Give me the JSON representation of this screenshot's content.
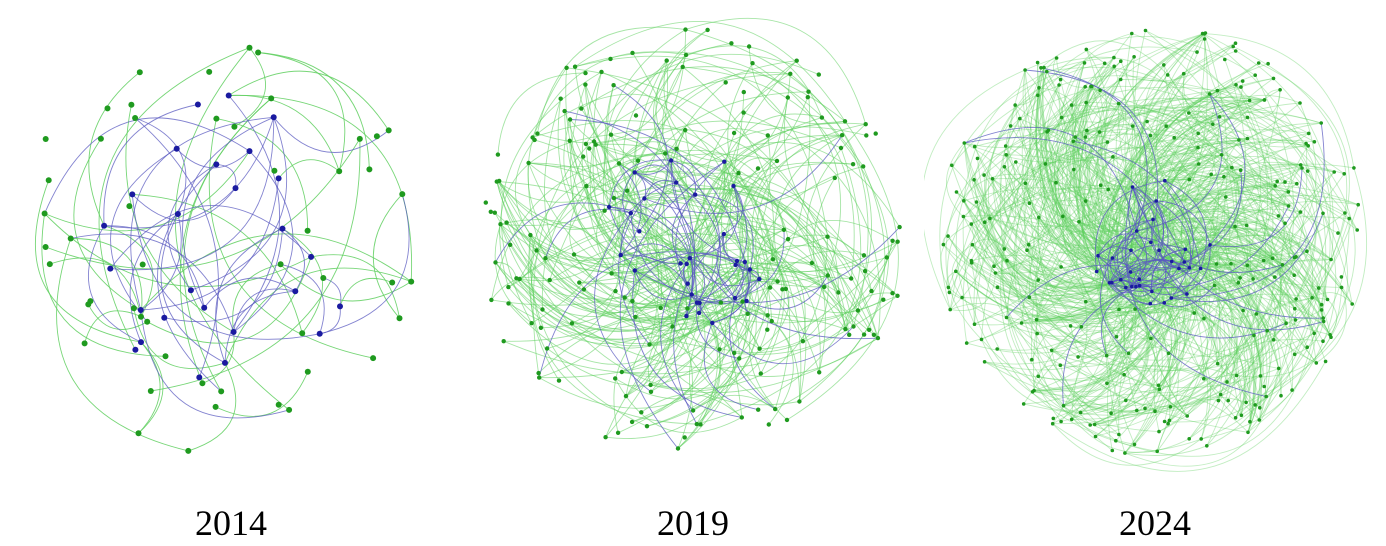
{
  "colors": {
    "green_node": "#1f9a1f",
    "green_edge": "#5fcf5f",
    "blue_node": "#1a1aa0",
    "blue_edge": "#5a5ac0"
  },
  "panels": [
    {
      "year": "2014",
      "seed": 11,
      "green_nodes": 50,
      "blue_nodes": 26,
      "green_edges": 45,
      "blue_edges": 38,
      "core_spread": 0.55,
      "node_r": 3.0
    },
    {
      "year": "2019",
      "seed": 23,
      "green_nodes": 170,
      "blue_nodes": 30,
      "green_edges": 320,
      "blue_edges": 70,
      "core_spread": 0.42,
      "node_r": 2.2
    },
    {
      "year": "2024",
      "seed": 37,
      "green_nodes": 290,
      "blue_nodes": 32,
      "green_edges": 820,
      "blue_edges": 90,
      "core_spread": 0.3,
      "node_r": 1.8
    }
  ]
}
